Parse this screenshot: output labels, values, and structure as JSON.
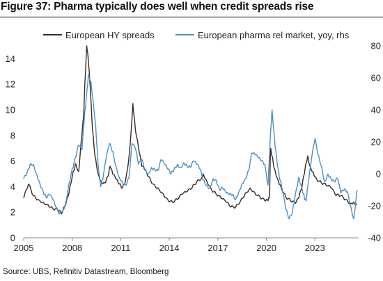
{
  "title": "Figure 37: Pharma typically does well when credit spreads rise",
  "source": "Source: UBS, Refinitiv Datastream, Bloomberg",
  "chart_data": {
    "type": "line",
    "x_ticks": [
      "2005",
      "2008",
      "2011",
      "2014",
      "2017",
      "2020",
      "2023"
    ],
    "x_range": [
      2005,
      2025.7
    ],
    "y_left_ticks": [
      "0",
      "2",
      "4",
      "6",
      "8",
      "10",
      "12",
      "14"
    ],
    "y_left_range": [
      0,
      15
    ],
    "y_right_ticks": [
      "-40",
      "-20",
      "0",
      "20",
      "40",
      "60",
      "80"
    ],
    "y_right_range": [
      -40,
      80
    ],
    "legend_position": "top",
    "grid": false,
    "series": [
      {
        "name": "European HY spreads",
        "axis": "left",
        "color": "#3b2a20",
        "x": [
          2005.0,
          2005.3,
          2005.6,
          2005.9,
          2006.2,
          2006.5,
          2006.8,
          2007.1,
          2007.35,
          2007.6,
          2007.8,
          2008.0,
          2008.2,
          2008.4,
          2008.55,
          2008.7,
          2008.8,
          2008.9,
          2009.0,
          2009.1,
          2009.25,
          2009.4,
          2009.6,
          2009.8,
          2010.0,
          2010.2,
          2010.35,
          2010.5,
          2010.7,
          2010.9,
          2011.1,
          2011.3,
          2011.5,
          2011.65,
          2011.75,
          2011.9,
          2012.1,
          2012.3,
          2012.5,
          2012.7,
          2013.0,
          2013.3,
          2013.6,
          2013.9,
          2014.2,
          2014.5,
          2014.8,
          2015.1,
          2015.4,
          2015.7,
          2016.0,
          2016.1,
          2016.3,
          2016.6,
          2016.9,
          2017.2,
          2017.5,
          2017.8,
          2018.1,
          2018.4,
          2018.7,
          2019.0,
          2019.3,
          2019.6,
          2019.9,
          2020.1,
          2020.2,
          2020.25,
          2020.35,
          2020.5,
          2020.7,
          2020.9,
          2021.2,
          2021.5,
          2021.8,
          2022.0,
          2022.2,
          2022.4,
          2022.55,
          2022.7,
          2022.9,
          2023.1,
          2023.4,
          2023.7,
          2024.0,
          2024.3,
          2024.6,
          2024.9,
          2025.2,
          2025.4,
          2025.6
        ],
        "values": [
          3.1,
          4.2,
          3.3,
          3.0,
          2.8,
          2.6,
          2.3,
          2.2,
          1.9,
          2.6,
          3.5,
          4.8,
          5.8,
          5.2,
          7.5,
          9.5,
          12.5,
          15.0,
          13.8,
          12.0,
          8.5,
          6.5,
          5.0,
          4.4,
          4.3,
          4.8,
          5.6,
          5.0,
          4.6,
          4.2,
          3.9,
          4.5,
          6.2,
          8.5,
          10.5,
          8.5,
          7.0,
          5.6,
          5.3,
          4.8,
          4.2,
          3.9,
          3.5,
          3.0,
          2.8,
          3.0,
          3.4,
          3.6,
          3.9,
          4.4,
          4.7,
          5.0,
          4.5,
          3.8,
          3.4,
          3.1,
          2.8,
          2.4,
          2.4,
          2.9,
          3.5,
          3.9,
          3.5,
          3.2,
          2.9,
          2.9,
          3.2,
          7.0,
          6.4,
          5.4,
          4.6,
          4.0,
          3.2,
          2.9,
          2.7,
          3.1,
          4.0,
          5.5,
          6.4,
          5.6,
          5.1,
          4.6,
          4.3,
          4.1,
          3.9,
          3.3,
          3.3,
          3.0,
          2.7,
          2.8,
          2.6
        ]
      },
      {
        "name": "European pharma rel market, yoy, rhs",
        "axis": "right",
        "color": "#4a90c8",
        "x": [
          2005.0,
          2005.2,
          2005.4,
          2005.6,
          2005.8,
          2006.0,
          2006.2,
          2006.4,
          2006.6,
          2006.8,
          2007.0,
          2007.2,
          2007.4,
          2007.6,
          2007.8,
          2008.0,
          2008.2,
          2008.4,
          2008.6,
          2008.75,
          2008.85,
          2009.0,
          2009.15,
          2009.3,
          2009.45,
          2009.6,
          2009.75,
          2009.9,
          2010.1,
          2010.3,
          2010.5,
          2010.7,
          2010.9,
          2011.1,
          2011.3,
          2011.5,
          2011.7,
          2011.9,
          2012.1,
          2012.3,
          2012.5,
          2012.7,
          2012.9,
          2013.1,
          2013.3,
          2013.5,
          2013.7,
          2013.9,
          2014.1,
          2014.3,
          2014.5,
          2014.7,
          2014.9,
          2015.1,
          2015.3,
          2015.5,
          2015.7,
          2015.9,
          2016.1,
          2016.3,
          2016.5,
          2016.7,
          2016.9,
          2017.1,
          2017.3,
          2017.5,
          2017.7,
          2017.9,
          2018.1,
          2018.3,
          2018.5,
          2018.7,
          2018.9,
          2019.1,
          2019.3,
          2019.5,
          2019.7,
          2019.9,
          2020.1,
          2020.25,
          2020.35,
          2020.5,
          2020.65,
          2020.8,
          2021.0,
          2021.2,
          2021.4,
          2021.6,
          2021.8,
          2022.0,
          2022.2,
          2022.35,
          2022.45,
          2022.6,
          2022.8,
          2023.0,
          2023.2,
          2023.4,
          2023.6,
          2023.8,
          2024.0,
          2024.2,
          2024.4,
          2024.6,
          2024.8,
          2025.0,
          2025.2,
          2025.4,
          2025.6
        ],
        "values": [
          -3,
          0,
          6,
          6,
          0,
          -6,
          -11,
          -15,
          -13,
          -16,
          -21,
          -25,
          -24,
          -18,
          -6,
          3,
          10,
          18,
          15,
          35,
          45,
          62,
          58,
          45,
          30,
          6,
          -8,
          -3,
          10,
          19,
          14,
          5,
          -2,
          -5,
          -7,
          -3,
          19,
          16,
          6,
          9,
          3,
          0,
          4,
          3,
          2,
          9,
          6,
          3,
          0,
          3,
          6,
          4,
          7,
          5,
          4,
          8,
          6,
          3,
          -4,
          -7,
          -9,
          -3,
          -4,
          -10,
          -9,
          -12,
          -13,
          -13,
          -16,
          -11,
          -6,
          -3,
          2,
          13,
          12,
          10,
          8,
          6,
          -7,
          25,
          40,
          22,
          8,
          -2,
          -11,
          -22,
          -28,
          -24,
          -12,
          -2,
          -9,
          -15,
          -17,
          -5,
          10,
          22,
          12,
          5,
          -5,
          0,
          -3,
          -5,
          -3,
          -12,
          -10,
          -11,
          -20,
          -28,
          -10
        ]
      }
    ]
  }
}
